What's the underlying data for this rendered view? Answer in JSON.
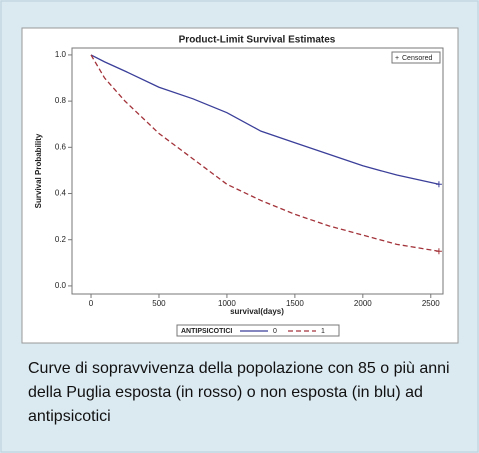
{
  "chart_data": {
    "type": "line",
    "title": "Product-Limit Survival Estimates",
    "x_label": "survival(days)",
    "y_label": "Survival Probability",
    "xlim": [
      -140,
      2590
    ],
    "xticks": [
      0,
      500,
      1000,
      1500,
      2000,
      2500
    ],
    "ylim": [
      -0.035,
      1.03
    ],
    "yticks": [
      {
        "value": 0,
        "label": "0.0"
      },
      {
        "value": 0.2,
        "label": "0.2"
      },
      {
        "value": 0.4,
        "label": "0.4"
      },
      {
        "value": 0.6,
        "label": "0.6"
      },
      {
        "value": 0.8,
        "label": "0.8"
      },
      {
        "value": 1,
        "label": "1.0"
      }
    ],
    "legend_title": "ANTIPSICOTICI",
    "censored_label": "Censored",
    "series": [
      {
        "name": "0",
        "color": "#3b3f99",
        "dash": false,
        "x": [
          0,
          100,
          250,
          500,
          750,
          1000,
          1250,
          1500,
          1750,
          2000,
          2250,
          2560
        ],
        "values": [
          1.0,
          0.97,
          0.93,
          0.86,
          0.81,
          0.75,
          0.67,
          0.62,
          0.57,
          0.52,
          0.48,
          0.44
        ]
      },
      {
        "name": "1",
        "color": "#a3333a",
        "dash": true,
        "x": [
          0,
          100,
          250,
          500,
          750,
          1000,
          1250,
          1500,
          1750,
          2000,
          2250,
          2560
        ],
        "values": [
          1.0,
          0.9,
          0.8,
          0.66,
          0.55,
          0.44,
          0.37,
          0.31,
          0.26,
          0.22,
          0.18,
          0.15
        ]
      }
    ]
  },
  "caption": "Curve di sopravvivenza della popolazione con 85 o più anni della Puglia esposta (in rosso) o non esposta (in blu) ad antipsicotici"
}
